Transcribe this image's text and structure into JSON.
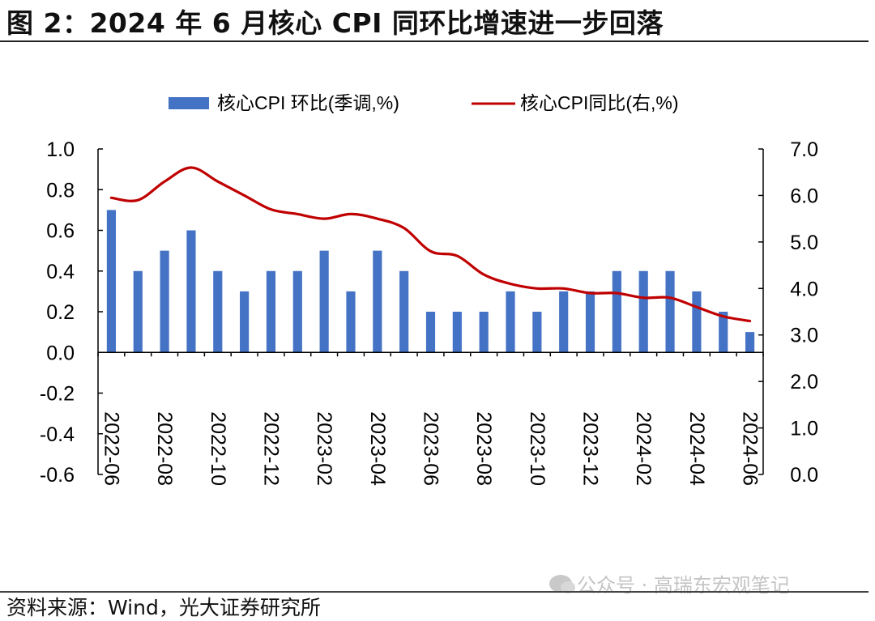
{
  "header": {
    "title": "图 2：2024 年 6 月核心 CPI 同环比增速进一步回落"
  },
  "footer": {
    "source": "资料来源：Wind，光大证券研究所",
    "watermark": "公众号 · 高瑞东宏观笔记"
  },
  "colors": {
    "bar": "#4472C4",
    "line": "#C00000",
    "axis": "#000000"
  },
  "chart_data": {
    "type": "bar",
    "categories": [
      "2022-06",
      "2022-07",
      "2022-08",
      "2022-09",
      "2022-10",
      "2022-11",
      "2022-12",
      "2023-01",
      "2023-02",
      "2023-03",
      "2023-04",
      "2023-05",
      "2023-06",
      "2023-07",
      "2023-08",
      "2023-09",
      "2023-10",
      "2023-11",
      "2023-12",
      "2024-01",
      "2024-02",
      "2024-03",
      "2024-04",
      "2024-05",
      "2024-06"
    ],
    "x_tick_labels": [
      "2022-06",
      "2022-08",
      "2022-10",
      "2022-12",
      "2023-02",
      "2023-04",
      "2023-06",
      "2023-08",
      "2023-10",
      "2023-12",
      "2024-02",
      "2024-04",
      "2024-06"
    ],
    "series": [
      {
        "name": "核心CPI 环比(季调,%)",
        "type": "bar",
        "axis": "left",
        "values": [
          0.7,
          0.4,
          0.5,
          0.6,
          0.4,
          0.3,
          0.4,
          0.4,
          0.5,
          0.3,
          0.5,
          0.4,
          0.2,
          0.2,
          0.2,
          0.3,
          0.2,
          0.3,
          0.3,
          0.4,
          0.4,
          0.4,
          0.3,
          0.2,
          0.1
        ]
      },
      {
        "name": "核心CPI同比(右,%)",
        "type": "line",
        "axis": "right",
        "values": [
          5.95,
          5.9,
          6.3,
          6.6,
          6.3,
          6.0,
          5.7,
          5.6,
          5.5,
          5.6,
          5.5,
          5.3,
          4.8,
          4.7,
          4.3,
          4.1,
          4.0,
          4.0,
          3.9,
          3.9,
          3.8,
          3.8,
          3.6,
          3.4,
          3.3
        ]
      }
    ],
    "y_left": {
      "min": -0.6,
      "max": 1.0,
      "step": 0.2,
      "tick_labels": [
        "1.0",
        "0.8",
        "0.6",
        "0.4",
        "0.2",
        "0.0",
        "-0.2",
        "-0.4",
        "-0.6"
      ]
    },
    "y_right": {
      "min": 0.0,
      "max": 7.0,
      "step": 1.0,
      "tick_labels": [
        "7.0",
        "6.0",
        "5.0",
        "4.0",
        "3.0",
        "2.0",
        "1.0",
        "0.0"
      ]
    },
    "legend_placement": "top-center",
    "grid": false
  }
}
